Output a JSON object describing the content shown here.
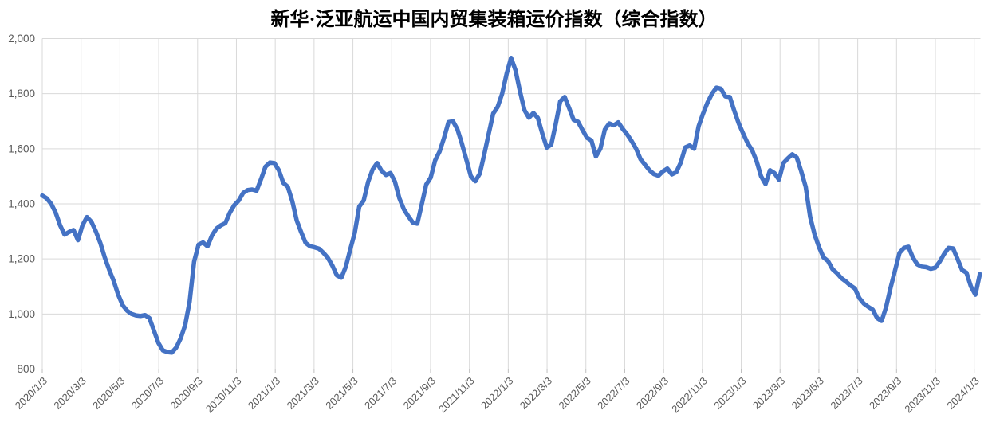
{
  "chart_data": {
    "type": "line",
    "title": "新华·泛亚航运中国内贸集装箱运价指数（综合指数）",
    "xlabel": "",
    "ylabel": "",
    "ylim": [
      800,
      2000
    ],
    "y_tick_values": [
      800,
      1000,
      1200,
      1400,
      1600,
      1800,
      2000
    ],
    "y_tick_labels": [
      "800",
      "1,000",
      "1,200",
      "1,400",
      "1,600",
      "1,800",
      "2,000"
    ],
    "x_tick_labels": [
      "2020/1/3",
      "2020/3/3",
      "2020/5/3",
      "2020/7/3",
      "2020/9/3",
      "2020/11/3",
      "2021/1/3",
      "2021/3/3",
      "2021/5/3",
      "2021/7/3",
      "2021/9/3",
      "2021/11/3",
      "2022/1/3",
      "2022/3/3",
      "2022/5/3",
      "2022/7/3",
      "2022/9/3",
      "2022/11/3",
      "2023/1/3",
      "2023/3/3",
      "2023/5/3",
      "2023/7/3",
      "2023/9/3",
      "2023/11/3",
      "2024/1/3"
    ],
    "x_interval": "weekly",
    "grid": {
      "horizontal": true,
      "vertical": true,
      "color": "#D9D9D9"
    },
    "axis_color": "#BFBFBF",
    "label_color": "#595959",
    "legend_position": "none",
    "series": [
      {
        "name": "综合指数",
        "color": "#4472C4",
        "values": [
          1430,
          1420,
          1400,
          1368,
          1322,
          1288,
          1298,
          1305,
          1268,
          1322,
          1352,
          1335,
          1300,
          1258,
          1205,
          1160,
          1120,
          1070,
          1032,
          1012,
          1000,
          995,
          993,
          996,
          985,
          940,
          895,
          868,
          862,
          860,
          878,
          912,
          960,
          1045,
          1190,
          1252,
          1260,
          1246,
          1285,
          1310,
          1322,
          1330,
          1368,
          1395,
          1412,
          1440,
          1450,
          1452,
          1448,
          1490,
          1535,
          1550,
          1548,
          1522,
          1476,
          1462,
          1410,
          1340,
          1297,
          1258,
          1246,
          1242,
          1237,
          1222,
          1203,
          1175,
          1140,
          1132,
          1172,
          1235,
          1295,
          1390,
          1412,
          1480,
          1525,
          1548,
          1520,
          1505,
          1512,
          1480,
          1420,
          1380,
          1355,
          1332,
          1328,
          1398,
          1470,
          1495,
          1558,
          1590,
          1640,
          1697,
          1700,
          1670,
          1618,
          1560,
          1500,
          1482,
          1510,
          1580,
          1655,
          1728,
          1752,
          1800,
          1872,
          1930,
          1885,
          1808,
          1740,
          1713,
          1730,
          1712,
          1655,
          1604,
          1615,
          1690,
          1772,
          1788,
          1748,
          1705,
          1698,
          1668,
          1640,
          1630,
          1572,
          1600,
          1670,
          1692,
          1685,
          1696,
          1672,
          1652,
          1628,
          1600,
          1562,
          1542,
          1522,
          1508,
          1502,
          1518,
          1528,
          1507,
          1515,
          1550,
          1605,
          1612,
          1600,
          1682,
          1728,
          1768,
          1800,
          1822,
          1818,
          1790,
          1788,
          1738,
          1692,
          1655,
          1620,
          1595,
          1555,
          1500,
          1472,
          1522,
          1512,
          1488,
          1548,
          1565,
          1580,
          1568,
          1518,
          1462,
          1352,
          1288,
          1242,
          1205,
          1192,
          1163,
          1148,
          1130,
          1118,
          1104,
          1093,
          1058,
          1038,
          1026,
          1016,
          985,
          975,
          1025,
          1095,
          1158,
          1222,
          1240,
          1244,
          1205,
          1180,
          1172,
          1170,
          1164,
          1168,
          1190,
          1218,
          1240,
          1238,
          1200,
          1160,
          1150,
          1100,
          1070,
          1145
        ]
      }
    ]
  }
}
